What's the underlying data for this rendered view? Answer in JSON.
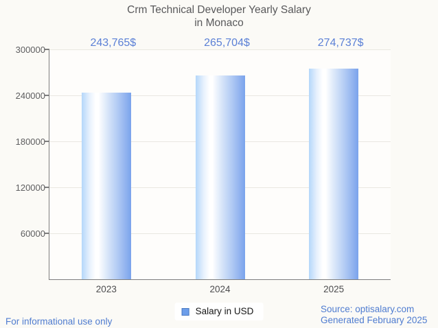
{
  "title": {
    "line1": "Crm Technical Developer Yearly Salary",
    "line2": "in Monaco"
  },
  "chart_data": {
    "type": "bar",
    "title": "Crm Technical Developer Yearly Salary in Monaco",
    "categories": [
      "2023",
      "2024",
      "2025"
    ],
    "values": [
      243765,
      265704,
      274737
    ],
    "value_labels": [
      "243,765$",
      "265,704$",
      "274,737$"
    ],
    "series_name": "Salary in USD",
    "xlabel": "",
    "ylabel": "",
    "ylim": [
      0,
      300000
    ],
    "yticks": [
      60000,
      120000,
      180000,
      240000,
      300000
    ],
    "ytick_labels": [
      "60000",
      "120000",
      "180000",
      "240000",
      "300000"
    ],
    "grid": true,
    "legend_position": "bottom-center"
  },
  "legend": {
    "label": "Salary in USD"
  },
  "footer": {
    "left": "For informational use only",
    "source": "Source: optisalary.com",
    "generated": "Generated February 2025"
  },
  "colors": {
    "value_label_blue": "#5b80d6",
    "footer_blue": "#4f7cd0",
    "legend_swatch_fill": "#6d9eea",
    "legend_swatch_border": "#4a7ac2",
    "bar_gradient_left": "#b4d7fa",
    "bar_gradient_mid": "#ffffff",
    "bar_gradient_right": "#7aa3ec",
    "title_gray": "#58585a",
    "axis_gray": "#7d7d7d",
    "page_background": "#fbfaf6"
  }
}
